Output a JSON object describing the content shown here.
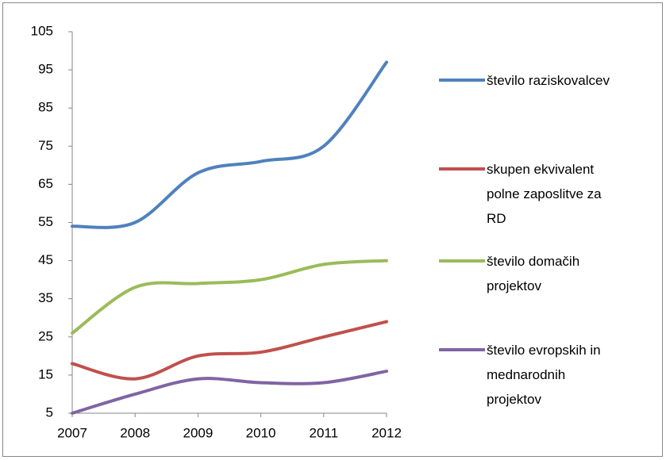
{
  "chart_data": {
    "type": "line",
    "categories": [
      "2007",
      "2008",
      "2009",
      "2010",
      "2011",
      "2012"
    ],
    "series": [
      {
        "name": "število raziskovalcev",
        "color": "#4f81bd",
        "values": [
          54,
          55,
          68,
          71,
          75,
          97
        ]
      },
      {
        "name": "skupen ekvivalent polne zaposlitve za RD",
        "color": "#c0504d",
        "values": [
          18,
          14,
          20,
          21,
          25,
          29
        ]
      },
      {
        "name": "število domačih projektov",
        "color": "#9bbb59",
        "values": [
          26,
          38,
          39,
          40,
          44,
          45
        ]
      },
      {
        "name": "število evropskih in mednarodnih projektov",
        "color": "#8064a2",
        "values": [
          5,
          10,
          14,
          13,
          13,
          16
        ]
      }
    ],
    "ylim": [
      5,
      105
    ],
    "yticks": [
      5,
      15,
      25,
      35,
      45,
      55,
      65,
      75,
      85,
      95,
      105
    ],
    "grid": false,
    "legend": "right",
    "smooth": true
  }
}
